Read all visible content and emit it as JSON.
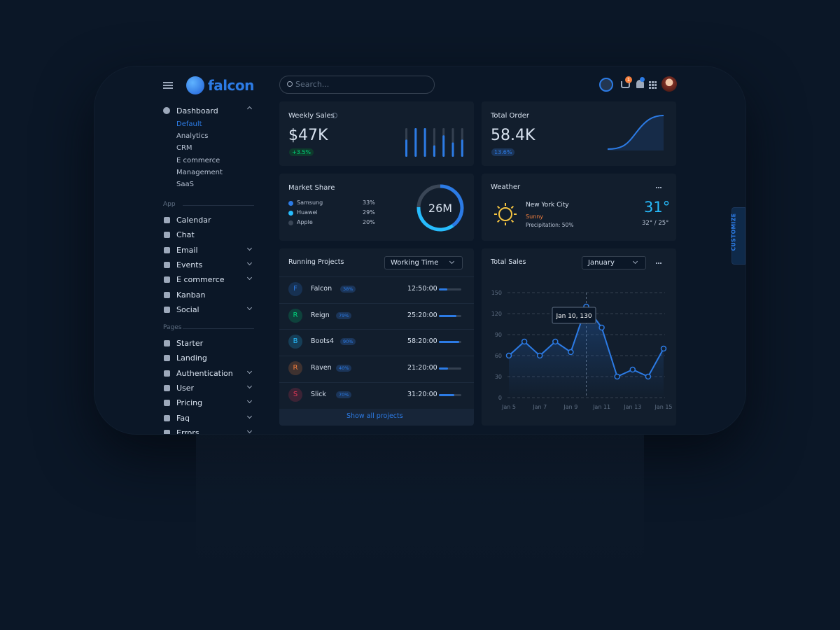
{
  "brand": "falcon",
  "search_placeholder": "Search...",
  "cart_count": 1,
  "customize": "CUSTOMIZE",
  "sidebar": {
    "dashboard": {
      "label": "Dashboard",
      "items": [
        "Default",
        "Analytics",
        "CRM",
        "E commerce",
        "Management",
        "SaaS"
      ]
    },
    "sections": [
      {
        "title": "App",
        "items": [
          {
            "label": "Calendar",
            "expandable": false
          },
          {
            "label": "Chat",
            "expandable": false
          },
          {
            "label": "Email",
            "expandable": true
          },
          {
            "label": "Events",
            "expandable": true
          },
          {
            "label": "E commerce",
            "expandable": true
          },
          {
            "label": "Kanban",
            "expandable": false
          },
          {
            "label": "Social",
            "expandable": true
          }
        ]
      },
      {
        "title": "Pages",
        "items": [
          {
            "label": "Starter",
            "expandable": false
          },
          {
            "label": "Landing",
            "expandable": false
          },
          {
            "label": "Authentication",
            "expandable": true
          },
          {
            "label": "User",
            "expandable": true
          },
          {
            "label": "Pricing",
            "expandable": true
          },
          {
            "label": "Faq",
            "expandable": true
          },
          {
            "label": "Errors",
            "expandable": true
          }
        ]
      }
    ]
  },
  "weekly_sales": {
    "title": "Weekly Sales",
    "value": "$47K",
    "change": "+3.5%",
    "bars": [
      60,
      100,
      100,
      40,
      75,
      50,
      60
    ]
  },
  "total_order": {
    "title": "Total Order",
    "value": "58.4K",
    "change": "13.6%"
  },
  "market_share": {
    "title": "Market Share",
    "total": "26M",
    "items": [
      {
        "name": "Samsung",
        "value": 33,
        "label": "33%",
        "color": "#2c7be5"
      },
      {
        "name": "Huawei",
        "value": 29,
        "label": "29%",
        "color": "#27bcfd"
      },
      {
        "name": "Apple",
        "value": 20,
        "label": "20%",
        "color": "#3a4656"
      }
    ]
  },
  "weather": {
    "title": "Weather",
    "city": "New York City",
    "condition": "Sunny",
    "precipitation": "Precipitation: 50%",
    "temp": "31°",
    "range": "32° / 25°"
  },
  "running_projects": {
    "title": "Running Projects",
    "filter": "Working Time",
    "footer": "Show all projects",
    "projects": [
      {
        "initial": "F",
        "name": "Falcon",
        "progress": 38,
        "progress_label": "38%",
        "time": "12:50:00",
        "color": "#2c7be5"
      },
      {
        "initial": "R",
        "name": "Reign",
        "progress": 79,
        "progress_label": "79%",
        "time": "25:20:00",
        "color": "#00d27a"
      },
      {
        "initial": "B",
        "name": "Boots4",
        "progress": 90,
        "progress_label": "90%",
        "time": "58:20:00",
        "color": "#27bcfd"
      },
      {
        "initial": "R",
        "name": "Raven",
        "progress": 40,
        "progress_label": "40%",
        "time": "21:20:00",
        "color": "#f5803e"
      },
      {
        "initial": "S",
        "name": "Slick",
        "progress": 70,
        "progress_label": "70%",
        "time": "31:20:00",
        "color": "#e63757"
      }
    ]
  },
  "total_sales": {
    "type": "line",
    "title": "Total Sales",
    "filter": "January",
    "categories": [
      "Jan 5",
      null,
      "Jan 7",
      null,
      "Jan 9",
      null,
      "Jan 11",
      null,
      "Jan 13",
      null,
      "Jan 15"
    ],
    "values": [
      60,
      80,
      60,
      80,
      65,
      130,
      100,
      30,
      40,
      30,
      70
    ],
    "color": "#2c7be5",
    "ylim": [
      0,
      150
    ],
    "yticks": [
      0,
      30,
      60,
      90,
      120,
      150
    ],
    "grid": true,
    "tooltip": "Jan 10, 130",
    "tooltip_index": 5
  }
}
